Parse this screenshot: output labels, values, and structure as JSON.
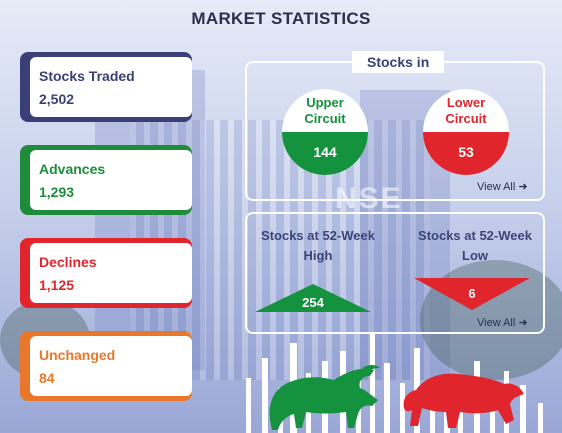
{
  "page": {
    "title": "MARKET STATISTICS"
  },
  "stats": [
    {
      "label": "Stocks Traded",
      "value": "2,502",
      "color": "#3a3f78"
    },
    {
      "label": "Advances",
      "value": "1,293",
      "color": "#1e8c3a"
    },
    {
      "label": "Declines",
      "value": "1,125",
      "color": "#e0252d"
    },
    {
      "label": "Unchanged",
      "value": "84",
      "color": "#e9772b"
    }
  ],
  "stocks_in": {
    "title": "Stocks in",
    "upper": {
      "label_line1": "Upper",
      "label_line2": "Circuit",
      "value": "144",
      "color": "#15923d"
    },
    "lower": {
      "label_line1": "Lower",
      "label_line2": "Circuit",
      "value": "53",
      "color": "#e0252d"
    },
    "view_all": "View All ➜"
  },
  "week52": {
    "high": {
      "label_line1": "Stocks at 52-Week",
      "label_line2": "High",
      "value": "254",
      "color": "#15923d"
    },
    "low": {
      "label_line1": "Stocks at 52-Week",
      "label_line2": "Low",
      "value": "6",
      "color": "#e0252d"
    },
    "view_all": "View All ➜"
  },
  "icons": {
    "bull": "bull-icon",
    "bear": "bear-icon"
  }
}
